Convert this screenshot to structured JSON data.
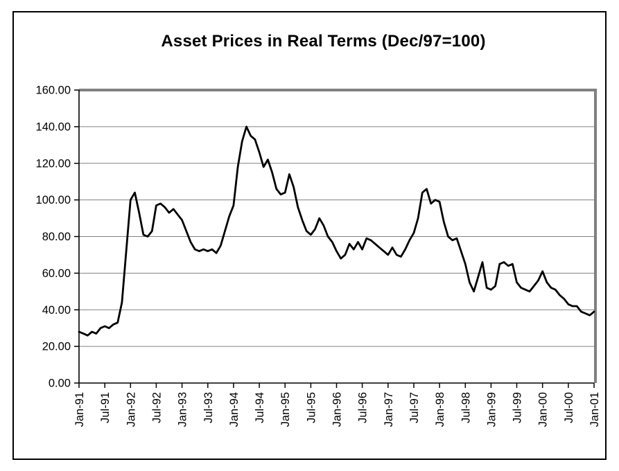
{
  "chart_data": {
    "type": "line",
    "title": "Asset Prices in Real Terms (Dec/97=100)",
    "xlabel": "",
    "ylabel": "",
    "ylim": [
      0,
      160
    ],
    "y_tick_step": 20,
    "y_tick_labels": [
      "0.00",
      "20.00",
      "40.00",
      "60.00",
      "80.00",
      "100.00",
      "120.00",
      "140.00",
      "160.00"
    ],
    "x_tick_labels": [
      "Jan-91",
      "Jul-91",
      "Jan-92",
      "Jul-92",
      "Jan-93",
      "Jul-93",
      "Jan-94",
      "Jul-94",
      "Jan-95",
      "Jul-95",
      "Jan-96",
      "Jul-96",
      "Jan-97",
      "Jul-97",
      "Jan-98",
      "Jul-98",
      "Jan-99",
      "Jul-99",
      "Jan-00",
      "Jul-00",
      "Jan-01"
    ],
    "points_per_tick": 6,
    "x_frequency": "monthly",
    "grid": "horizontal",
    "legend": "none",
    "colors": {
      "line": "#000000",
      "axis": "#000000",
      "grid": "#808080",
      "plot_border": "#808080",
      "frame_border": "#000000",
      "background": "#ffffff"
    },
    "values": [
      28,
      27,
      26,
      28,
      27,
      30,
      31,
      30,
      32,
      33,
      44,
      72,
      100,
      104,
      93,
      81,
      80,
      83,
      97,
      98,
      96,
      93,
      95,
      92,
      89,
      83,
      77,
      73,
      72,
      73,
      72,
      73,
      71,
      75,
      83,
      91,
      97,
      118,
      132,
      140,
      135,
      133,
      126,
      118,
      122,
      115,
      106,
      103,
      104,
      114,
      107,
      96,
      89,
      83,
      81,
      84,
      90,
      86,
      80,
      77,
      72,
      68,
      70,
      76,
      73,
      77,
      73,
      79,
      78,
      76,
      74,
      72,
      70,
      74,
      70,
      69,
      73,
      78,
      82,
      90,
      104,
      106,
      98,
      100,
      99,
      88,
      80,
      78,
      79,
      72,
      65,
      55,
      50,
      58,
      66,
      52,
      51,
      53,
      65,
      66,
      64,
      65,
      55,
      52,
      51,
      50,
      53,
      56,
      61,
      55,
      52,
      51,
      48,
      46,
      43,
      42,
      42,
      39,
      38,
      37,
      39
    ]
  }
}
